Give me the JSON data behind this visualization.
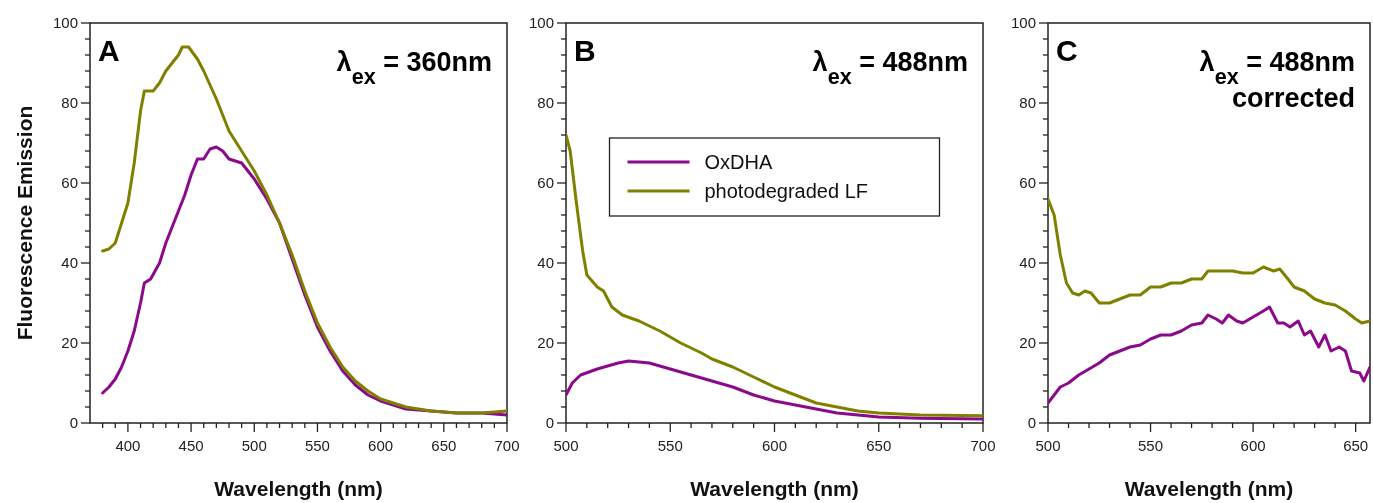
{
  "chart_data": [
    {
      "type": "line",
      "ylabel": "Fluorescence Emission",
      "xlabel": "Wavelength (nm)",
      "annotations": [
        "A",
        "λ$_{ex}$ = 360nm"
      ],
      "xlim": [
        370,
        700
      ],
      "ylim": [
        0,
        100
      ],
      "xticks": [
        {
          "value": 380,
          "label": null
        },
        {
          "value": 390,
          "label": null
        },
        400,
        {
          "value": 410,
          "label": null
        },
        {
          "value": 420,
          "label": null
        },
        {
          "value": 430,
          "label": null
        },
        {
          "value": 440,
          "label": null
        },
        450,
        {
          "value": 460,
          "label": null
        },
        {
          "value": 470,
          "label": null
        },
        {
          "value": 480,
          "label": null
        },
        {
          "value": 490,
          "label": null
        },
        500,
        {
          "value": 510,
          "label": null
        },
        {
          "value": 520,
          "label": null
        },
        {
          "value": 530,
          "label": null
        },
        {
          "value": 540,
          "label": null
        },
        550,
        {
          "value": 560,
          "label": null
        },
        {
          "value": 570,
          "label": null
        },
        {
          "value": 580,
          "label": null
        },
        {
          "value": 590,
          "label": null
        },
        600,
        {
          "value": 610,
          "label": null
        },
        {
          "value": 620,
          "label": null
        },
        {
          "value": 630,
          "label": null
        },
        {
          "value": 640,
          "label": null
        },
        650,
        {
          "value": 660,
          "label": null
        },
        {
          "value": 670,
          "label": null
        },
        {
          "value": 680,
          "label": null
        },
        {
          "value": 690,
          "label": null
        },
        700
      ],
      "yticks": [
        0,
        {
          "value": 4,
          "label": null
        },
        {
          "value": 8,
          "label": null
        },
        {
          "value": 12,
          "label": null
        },
        {
          "value": 16,
          "label": null
        },
        20,
        {
          "value": 24,
          "label": null
        },
        {
          "value": 28,
          "label": null
        },
        {
          "value": 32,
          "label": null
        },
        {
          "value": 36,
          "label": null
        },
        40,
        {
          "value": 44,
          "label": null
        },
        {
          "value": 48,
          "label": null
        },
        {
          "value": 52,
          "label": null
        },
        {
          "value": 56,
          "label": null
        },
        60,
        {
          "value": 64,
          "label": null
        },
        {
          "value": 68,
          "label": null
        },
        {
          "value": 72,
          "label": null
        },
        {
          "value": 76,
          "label": null
        },
        80,
        {
          "value": 84,
          "label": null
        },
        {
          "value": 88,
          "label": null
        },
        {
          "value": 92,
          "label": null
        },
        {
          "value": 96,
          "label": null
        },
        100
      ],
      "series": [
        {
          "color": "#8b0a8b",
          "x": [
            380,
            385,
            390,
            395,
            400,
            405,
            410,
            413,
            418,
            425,
            430,
            440,
            445,
            450,
            455,
            460,
            465,
            470,
            475,
            480,
            490,
            500,
            510,
            520,
            530,
            540,
            550,
            560,
            570,
            580,
            590,
            600,
            620,
            640,
            660,
            680,
            700
          ],
          "values": [
            7.5,
            9,
            11,
            14,
            18,
            23,
            30,
            35,
            36,
            40,
            45,
            53,
            57,
            62,
            66,
            66,
            68.5,
            69,
            68,
            66,
            65,
            61,
            56,
            50,
            41,
            32,
            24,
            18,
            13,
            9.5,
            7,
            5.5,
            3.5,
            3,
            2.5,
            2.5,
            2
          ]
        },
        {
          "color": "#808000",
          "x": [
            380,
            385,
            390,
            395,
            400,
            405,
            410,
            413,
            420,
            425,
            430,
            435,
            440,
            443,
            448,
            455,
            460,
            470,
            480,
            490,
            500,
            510,
            520,
            530,
            540,
            550,
            560,
            570,
            580,
            590,
            600,
            620,
            640,
            660,
            680,
            700
          ],
          "values": [
            43,
            43.5,
            45,
            50,
            55,
            65,
            78,
            83,
            83,
            85,
            88,
            90,
            92,
            94,
            94,
            91,
            88,
            81,
            73,
            68,
            63,
            57,
            50,
            42,
            33,
            25,
            19,
            14,
            10.5,
            8,
            6,
            4,
            3,
            2.5,
            2.5,
            3
          ]
        }
      ]
    },
    {
      "type": "line",
      "xlabel": "Wavelength (nm)",
      "annotations": [
        "B",
        "λ$_{ex}$ = 488nm"
      ],
      "legend": "top",
      "xlim": [
        500,
        700
      ],
      "ylim": [
        0,
        100
      ],
      "xticks": [
        500,
        {
          "value": 510,
          "label": null
        },
        {
          "value": 520,
          "label": null
        },
        {
          "value": 530,
          "label": null
        },
        {
          "value": 540,
          "label": null
        },
        550,
        {
          "value": 560,
          "label": null
        },
        {
          "value": 570,
          "label": null
        },
        {
          "value": 580,
          "label": null
        },
        {
          "value": 590,
          "label": null
        },
        600,
        {
          "value": 610,
          "label": null
        },
        {
          "value": 620,
          "label": null
        },
        {
          "value": 630,
          "label": null
        },
        {
          "value": 640,
          "label": null
        },
        650,
        {
          "value": 660,
          "label": null
        },
        {
          "value": 670,
          "label": null
        },
        {
          "value": 680,
          "label": null
        },
        {
          "value": 690,
          "label": null
        },
        700
      ],
      "yticks": [
        0,
        {
          "value": 4,
          "label": null
        },
        {
          "value": 8,
          "label": null
        },
        {
          "value": 12,
          "label": null
        },
        {
          "value": 16,
          "label": null
        },
        20,
        {
          "value": 24,
          "label": null
        },
        {
          "value": 28,
          "label": null
        },
        {
          "value": 32,
          "label": null
        },
        {
          "value": 36,
          "label": null
        },
        40,
        {
          "value": 44,
          "label": null
        },
        {
          "value": 48,
          "label": null
        },
        {
          "value": 52,
          "label": null
        },
        {
          "value": 56,
          "label": null
        },
        60,
        {
          "value": 64,
          "label": null
        },
        {
          "value": 68,
          "label": null
        },
        {
          "value": 72,
          "label": null
        },
        {
          "value": 76,
          "label": null
        },
        80,
        {
          "value": 84,
          "label": null
        },
        {
          "value": 88,
          "label": null
        },
        {
          "value": 92,
          "label": null
        },
        {
          "value": 96,
          "label": null
        },
        100
      ],
      "series": [
        {
          "name": "OxDHA",
          "color": "#8b0a8b",
          "x": [
            500,
            503,
            507,
            515,
            525,
            530,
            540,
            550,
            560,
            570,
            580,
            590,
            600,
            610,
            620,
            630,
            640,
            650,
            670,
            700
          ],
          "values": [
            7,
            10,
            12,
            13.5,
            15,
            15.5,
            15,
            13.5,
            12,
            10.5,
            9,
            7,
            5.5,
            4.5,
            3.5,
            2.5,
            2,
            1.5,
            1.2,
            1
          ]
        },
        {
          "name": "photodegraded LF",
          "color": "#808000",
          "x": [
            500,
            502,
            505,
            508,
            510,
            515,
            518,
            522,
            527,
            535,
            545,
            555,
            565,
            570,
            580,
            590,
            600,
            610,
            620,
            630,
            640,
            650,
            670,
            700
          ],
          "values": [
            72,
            68,
            55,
            43,
            37,
            34,
            33,
            29,
            27,
            25.5,
            23,
            20,
            17.5,
            16,
            14,
            11.5,
            9,
            7,
            5,
            4,
            3,
            2.5,
            2,
            1.8
          ]
        }
      ]
    },
    {
      "type": "line",
      "xlabel": "Wavelength (nm)",
      "annotations": [
        "C",
        "λ$_{ex}$ = 488nm",
        "corrected"
      ],
      "xlim": [
        500,
        657
      ],
      "ylim": [
        0,
        100
      ],
      "xticks": [
        500,
        {
          "value": 510,
          "label": null
        },
        {
          "value": 520,
          "label": null
        },
        {
          "value": 530,
          "label": null
        },
        {
          "value": 540,
          "label": null
        },
        550,
        {
          "value": 560,
          "label": null
        },
        {
          "value": 570,
          "label": null
        },
        {
          "value": 580,
          "label": null
        },
        {
          "value": 590,
          "label": null
        },
        600,
        {
          "value": 610,
          "label": null
        },
        {
          "value": 620,
          "label": null
        },
        {
          "value": 630,
          "label": null
        },
        {
          "value": 640,
          "label": null
        },
        650
      ],
      "yticks": [
        0,
        {
          "value": 4,
          "label": null
        },
        {
          "value": 8,
          "label": null
        },
        {
          "value": 12,
          "label": null
        },
        {
          "value": 16,
          "label": null
        },
        20,
        {
          "value": 24,
          "label": null
        },
        {
          "value": 28,
          "label": null
        },
        {
          "value": 32,
          "label": null
        },
        {
          "value": 36,
          "label": null
        },
        40,
        {
          "value": 44,
          "label": null
        },
        {
          "value": 48,
          "label": null
        },
        {
          "value": 52,
          "label": null
        },
        {
          "value": 56,
          "label": null
        },
        60,
        {
          "value": 64,
          "label": null
        },
        {
          "value": 68,
          "label": null
        },
        {
          "value": 72,
          "label": null
        },
        {
          "value": 76,
          "label": null
        },
        80,
        {
          "value": 84,
          "label": null
        },
        {
          "value": 88,
          "label": null
        },
        {
          "value": 92,
          "label": null
        },
        {
          "value": 96,
          "label": null
        },
        100
      ],
      "series": [
        {
          "color": "#8b0a8b",
          "x": [
            500,
            503,
            506,
            510,
            515,
            520,
            525,
            530,
            535,
            540,
            545,
            550,
            555,
            560,
            565,
            570,
            575,
            578,
            582,
            585,
            588,
            592,
            595,
            600,
            605,
            608,
            612,
            615,
            618,
            622,
            625,
            628,
            632,
            635,
            638,
            642,
            645,
            648,
            652,
            654,
            657
          ],
          "values": [
            5,
            7,
            9,
            10,
            12,
            13.5,
            15,
            17,
            18,
            19,
            19.5,
            21,
            22,
            22,
            23,
            24.5,
            25,
            27,
            26,
            25,
            27,
            25.5,
            25,
            26.5,
            28,
            29,
            25,
            25,
            24,
            25.5,
            22,
            23,
            19,
            22,
            18,
            19,
            18,
            13,
            12.5,
            10.5,
            14
          ]
        },
        {
          "color": "#808000",
          "x": [
            500,
            503,
            506,
            509,
            512,
            515,
            518,
            521,
            525,
            530,
            535,
            540,
            545,
            550,
            555,
            560,
            565,
            570,
            575,
            578,
            585,
            590,
            595,
            600,
            605,
            610,
            613,
            617,
            620,
            625,
            630,
            635,
            640,
            645,
            650,
            653,
            657
          ],
          "values": [
            56,
            52,
            42,
            35,
            32.5,
            32,
            33,
            32.5,
            30,
            30,
            31,
            32,
            32,
            34,
            34,
            35,
            35,
            36,
            36,
            38,
            38,
            38,
            37.5,
            37.5,
            39,
            38,
            38.5,
            36,
            34,
            33,
            31,
            30,
            29.5,
            28,
            26,
            25,
            25.5
          ]
        }
      ]
    }
  ]
}
